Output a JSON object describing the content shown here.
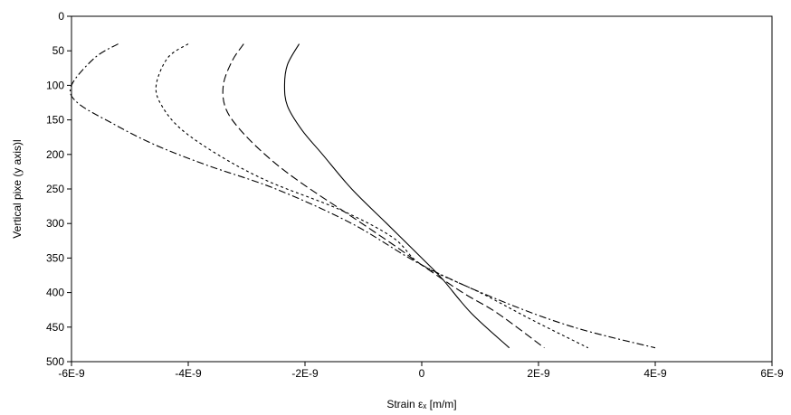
{
  "chart_data": {
    "type": "line",
    "xlabel": "Strain εₓ [m/m]",
    "ylabel": "Vertical pixe (y axis)l",
    "xlim": [
      -6e-09,
      6e-09
    ],
    "ylim": [
      0,
      500
    ],
    "y_inverted": true,
    "x_ticks": [
      -6e-09,
      -4e-09,
      -2e-09,
      0,
      2e-09,
      4e-09,
      6e-09
    ],
    "x_tick_labels": [
      "-6E-9",
      "-4E-9",
      "-2E-9",
      "0",
      "2E-9",
      "4E-9",
      "6E-9"
    ],
    "y_ticks": [
      0,
      50,
      100,
      150,
      200,
      250,
      300,
      350,
      400,
      450,
      500
    ],
    "y_tick_labels": [
      "0",
      "50",
      "100",
      "150",
      "200",
      "250",
      "300",
      "350",
      "400",
      "450",
      "500"
    ],
    "grid": false,
    "legend": "none",
    "series": [
      {
        "style": "solid",
        "x": [
          -2.1e-09,
          -2.3e-09,
          -2.35e-09,
          -2.3e-09,
          -2.05e-09,
          -1.7e-09,
          -1.2e-09,
          -6e-10,
          0,
          3.5e-10,
          8.5e-10,
          1.5e-09
        ],
        "y": [
          40,
          70,
          100,
          130,
          165,
          200,
          250,
          300,
          350,
          380,
          430,
          480
        ]
      },
      {
        "style": "long-dash",
        "x": [
          -3.05e-09,
          -3.25e-09,
          -3.4e-09,
          -3.35e-09,
          -3.05e-09,
          -2.55e-09,
          -2e-09,
          -1.2e-09,
          -5e-10,
          0,
          7e-10,
          1.3e-09,
          2.1e-09
        ],
        "y": [
          40,
          65,
          100,
          135,
          170,
          210,
          245,
          290,
          330,
          360,
          400,
          430,
          480
        ]
      },
      {
        "style": "short-dash",
        "x": [
          -4e-09,
          -4.35e-09,
          -4.55e-09,
          -4.45e-09,
          -4.1e-09,
          -3.4e-09,
          -2.6e-09,
          -1.4e-09,
          -5e-10,
          0,
          1e-09,
          1.9e-09,
          2.85e-09
        ],
        "y": [
          40,
          60,
          100,
          130,
          165,
          205,
          240,
          280,
          320,
          360,
          400,
          440,
          480
        ]
      },
      {
        "style": "dash-dot",
        "x": [
          -5.2e-09,
          -5.6e-09,
          -6e-09,
          -5.9e-09,
          -5.3e-09,
          -4.6e-09,
          -3.7e-09,
          -2.5e-09,
          -1.2e-09,
          0,
          1.3e-09,
          2.6e-09,
          4e-09
        ],
        "y": [
          40,
          60,
          100,
          125,
          155,
          185,
          215,
          250,
          300,
          360,
          410,
          450,
          480
        ]
      }
    ]
  }
}
